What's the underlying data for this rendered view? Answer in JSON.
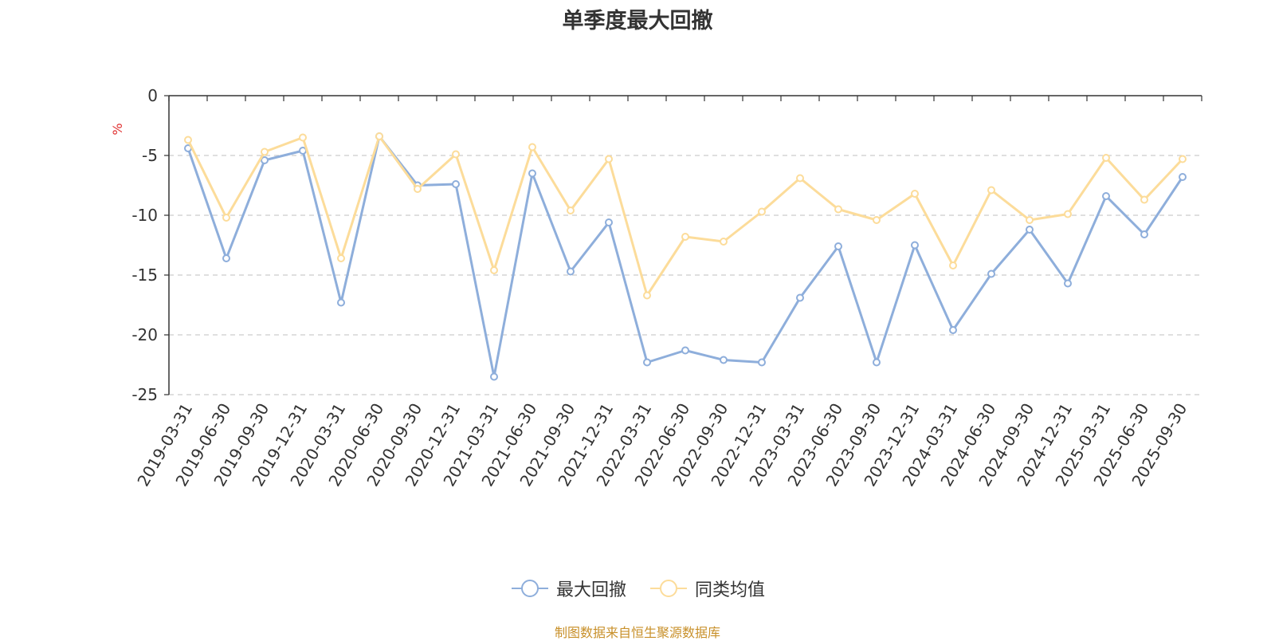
{
  "chart_data": {
    "type": "line",
    "title": "单季度最大回撤",
    "ylabel": "%",
    "xlabel": "",
    "ylim": [
      -25,
      0
    ],
    "yticks": [
      0,
      -5,
      -10,
      -15,
      -20,
      -25
    ],
    "grid": true,
    "legend_position": "bottom-center",
    "categories": [
      "2019-03-31",
      "2019-06-30",
      "2019-09-30",
      "2019-12-31",
      "2020-03-31",
      "2020-06-30",
      "2020-09-30",
      "2020-12-31",
      "2021-03-31",
      "2021-06-30",
      "2021-09-30",
      "2021-12-31",
      "2022-03-31",
      "2022-06-30",
      "2022-09-30",
      "2022-12-31",
      "2023-03-31",
      "2023-06-30",
      "2023-09-30",
      "2023-12-31",
      "2024-03-31",
      "2024-06-30",
      "2024-09-30",
      "2024-12-31",
      "2025-03-31",
      "2025-06-30",
      "2025-09-30"
    ],
    "series": [
      {
        "name": "最大回撤",
        "color": "#8eaedb",
        "values": [
          -4.4,
          -13.6,
          -5.4,
          -4.6,
          -17.3,
          -3.4,
          -7.5,
          -7.4,
          -23.5,
          -6.5,
          -14.7,
          -10.6,
          -22.3,
          -21.3,
          -22.1,
          -22.3,
          -16.9,
          -12.6,
          -22.3,
          -12.5,
          -19.6,
          -14.9,
          -11.2,
          -15.7,
          -8.4,
          -11.6,
          -6.8
        ]
      },
      {
        "name": "同类均值",
        "color": "#fcdc9a",
        "values": [
          -3.7,
          -10.2,
          -4.7,
          -3.5,
          -13.6,
          -3.4,
          -7.8,
          -4.9,
          -14.6,
          -4.3,
          -9.6,
          -5.3,
          -16.7,
          -11.8,
          -12.2,
          -9.7,
          -6.9,
          -9.5,
          -10.4,
          -8.2,
          -14.2,
          -7.9,
          -10.4,
          -9.9,
          -5.2,
          -8.7,
          -5.3
        ]
      }
    ]
  },
  "source_text": "制图数据来自恒生聚源数据库"
}
